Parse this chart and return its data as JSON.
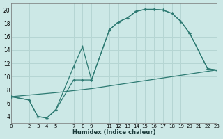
{
  "xlabel": "Humidex (Indice chaleur)",
  "bg_color": "#cce8e6",
  "grid_color": "#b5d5d3",
  "line_color": "#2d7a72",
  "xlim": [
    0,
    23
  ],
  "ylim": [
    3,
    21
  ],
  "xticks": [
    0,
    2,
    3,
    4,
    5,
    7,
    8,
    9,
    11,
    12,
    13,
    14,
    15,
    16,
    17,
    18,
    19,
    20,
    21,
    22,
    23
  ],
  "yticks": [
    4,
    6,
    8,
    10,
    12,
    14,
    16,
    18,
    20
  ],
  "curve1_x": [
    0,
    2,
    3,
    4,
    5,
    7,
    8,
    9,
    11,
    12,
    13,
    14,
    15,
    16,
    17,
    18,
    19,
    20,
    22,
    23
  ],
  "curve1_y": [
    7.0,
    6.5,
    4.0,
    3.8,
    5.0,
    11.5,
    14.5,
    9.5,
    17.0,
    18.2,
    18.8,
    19.8,
    20.1,
    20.1,
    20.0,
    19.5,
    18.3,
    16.5,
    11.2,
    11.0
  ],
  "curve2_x": [
    0,
    2,
    3,
    4,
    5,
    7,
    8,
    9,
    11,
    12,
    13,
    14,
    15,
    16,
    17,
    18,
    19,
    20,
    22,
    23
  ],
  "curve2_y": [
    7.0,
    6.5,
    4.0,
    3.8,
    5.0,
    9.5,
    9.5,
    9.5,
    17.0,
    18.2,
    18.8,
    19.8,
    20.1,
    20.1,
    20.0,
    19.5,
    18.3,
    16.5,
    11.2,
    11.0
  ],
  "curve3_x": [
    0,
    5,
    9,
    14,
    19,
    23
  ],
  "curve3_y": [
    7.0,
    7.6,
    8.2,
    9.2,
    10.2,
    11.0
  ]
}
